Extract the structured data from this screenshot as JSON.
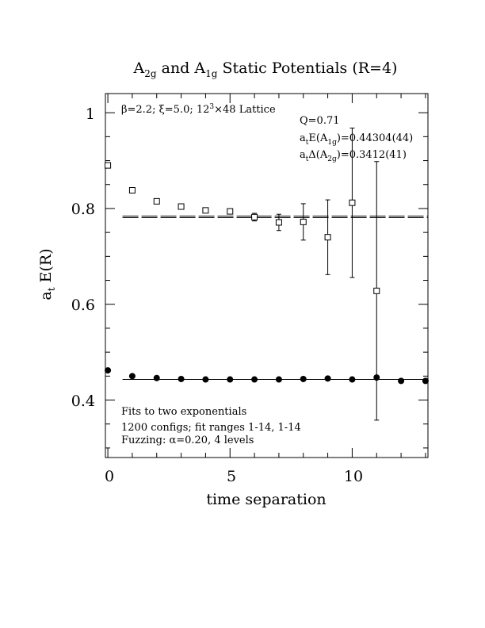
{
  "chart_data": {
    "type": "scatter",
    "title": {
      "pre": "A",
      "sub1": "2g",
      "mid": " and A",
      "sub2": "1g",
      "post": " Static Potentials (R=4)"
    },
    "xlabel": "time separation",
    "ylabel": {
      "main": "a",
      "sub": "t",
      "rest": " E(R)"
    },
    "xlim": [
      -0.1,
      13.1
    ],
    "ylim": [
      0.28,
      1.04
    ],
    "x_ticks": [
      0,
      5,
      10
    ],
    "y_ticks": [
      0.4,
      0.6,
      0.8,
      1
    ],
    "x_tick_labels": [
      "0",
      "5",
      "10"
    ],
    "y_tick_labels": [
      "0.4",
      "0.6",
      "0.8",
      "1"
    ],
    "info_top_left": {
      "beta": "β=2.2; ",
      "xi": "ξ=5.0; 12",
      "sup": "3",
      "rest": "×48 Lattice"
    },
    "fit_info": {
      "q": "Q=0.71",
      "e_pre": "a",
      "e_sub": "t",
      "e_mid": "E(A",
      "e_sub2": "1g",
      "e_post": ")=0.44304(44)",
      "d_pre": "a",
      "d_sub": "t",
      "d_mid": "Δ(A",
      "d_sub2": "2g",
      "d_post": ")=0.3412(41)"
    },
    "notes": [
      "Fits to two exponentials",
      "1200 configs; fit ranges 1-14, 1-14",
      "Fuzzing: α=0.20, 4 levels"
    ],
    "series": [
      {
        "marker": "open-square",
        "points": [
          {
            "x": 0,
            "y": 0.89,
            "err": 0.004
          },
          {
            "x": 1,
            "y": 0.838,
            "err": 0.003
          },
          {
            "x": 2,
            "y": 0.815,
            "err": 0.003
          },
          {
            "x": 3,
            "y": 0.804,
            "err": 0.003
          },
          {
            "x": 4,
            "y": 0.796,
            "err": 0.004
          },
          {
            "x": 5,
            "y": 0.794,
            "err": 0.004
          },
          {
            "x": 6,
            "y": 0.782,
            "err": 0.008
          },
          {
            "x": 7,
            "y": 0.771,
            "err": 0.017
          },
          {
            "x": 8,
            "y": 0.772,
            "err": 0.038
          },
          {
            "x": 9,
            "y": 0.74,
            "err": 0.078
          },
          {
            "x": 10,
            "y": 0.812,
            "err": 0.156
          },
          {
            "x": 11,
            "y": 0.628,
            "err": 0.27
          }
        ]
      },
      {
        "marker": "filled-circle",
        "points": [
          {
            "x": 0,
            "y": 0.462
          },
          {
            "x": 1,
            "y": 0.45
          },
          {
            "x": 2,
            "y": 0.446
          },
          {
            "x": 3,
            "y": 0.444
          },
          {
            "x": 4,
            "y": 0.443
          },
          {
            "x": 5,
            "y": 0.443
          },
          {
            "x": 6,
            "y": 0.443
          },
          {
            "x": 7,
            "y": 0.443
          },
          {
            "x": 8,
            "y": 0.444
          },
          {
            "x": 9,
            "y": 0.445
          },
          {
            "x": 10,
            "y": 0.443
          },
          {
            "x": 11,
            "y": 0.447
          },
          {
            "x": 12,
            "y": 0.44
          },
          {
            "x": 13,
            "y": 0.44
          }
        ]
      }
    ],
    "fit_lines": [
      {
        "y": 0.44304,
        "x_range": [
          0.6,
          13.1
        ],
        "style": "solid"
      },
      {
        "y": 0.78424,
        "x_range": [
          0.6,
          13.1
        ],
        "style": "dashed"
      },
      {
        "y": 0.78093,
        "x_range": [
          0.6,
          13.1
        ],
        "style": "dashed"
      }
    ],
    "grid": false,
    "legend": "none"
  }
}
